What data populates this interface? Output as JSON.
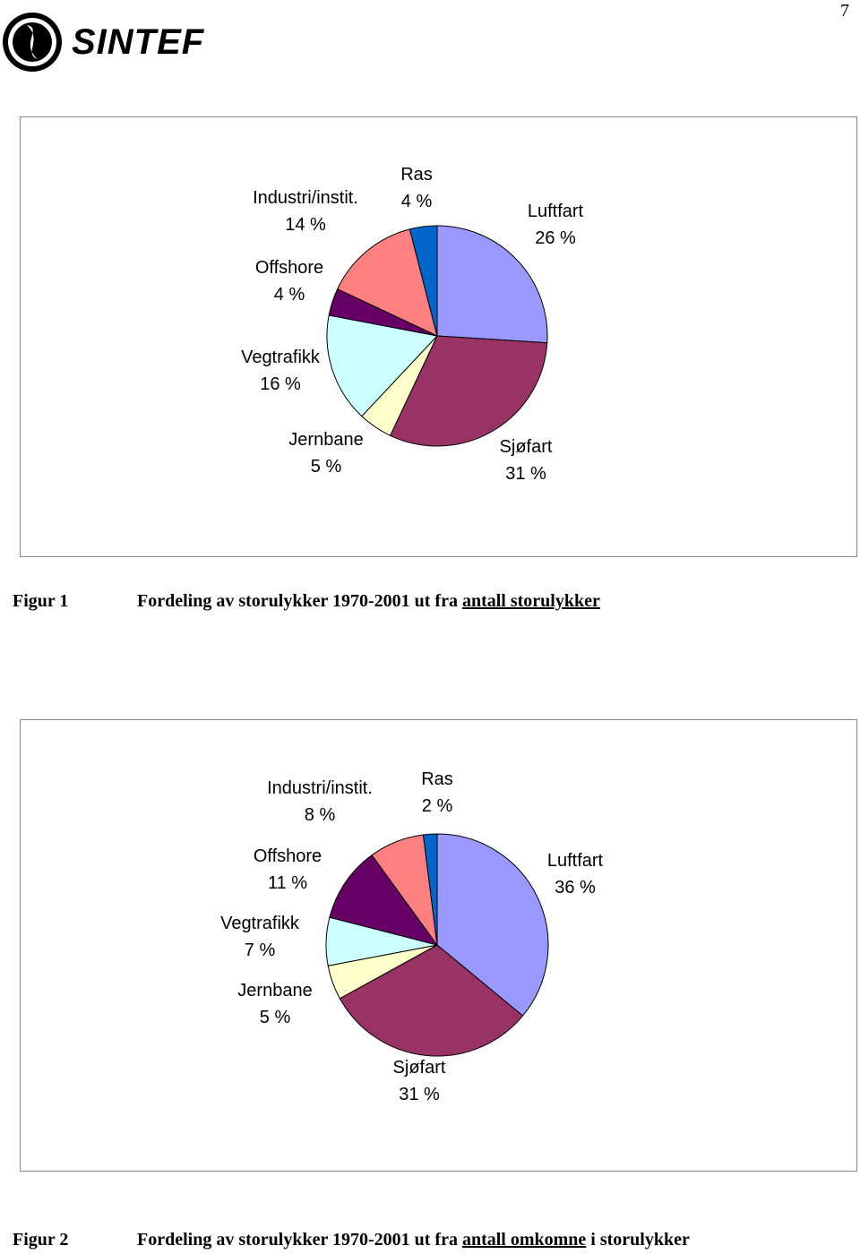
{
  "page_number": "7",
  "logo": "SINTEF",
  "chart_data": [
    {
      "type": "pie",
      "categories": [
        "Luftfart",
        "Sjøfart",
        "Jernbane",
        "Vegtrafikk",
        "Offshore",
        "Industri/instit.",
        "Ras"
      ],
      "values": [
        26,
        31,
        5,
        16,
        4,
        14,
        4
      ],
      "value_labels": [
        "26 %",
        "31 %",
        "5 %",
        "16 %",
        "4 %",
        "14 %",
        "4 %"
      ],
      "colors": [
        "#9999ff",
        "#993366",
        "#ffffcc",
        "#ccffff",
        "#660066",
        "#ff8080",
        "#0066cc"
      ]
    },
    {
      "type": "pie",
      "categories": [
        "Luftfart",
        "Sjøfart",
        "Jernbane",
        "Vegtrafikk",
        "Offshore",
        "Industri/instit.",
        "Ras"
      ],
      "values": [
        36,
        31,
        5,
        7,
        11,
        8,
        2
      ],
      "value_labels": [
        "36 %",
        "31 %",
        "5 %",
        "7 %",
        "11 %",
        "8 %",
        "2 %"
      ],
      "colors": [
        "#9999ff",
        "#993366",
        "#ffffcc",
        "#ccffff",
        "#660066",
        "#ff8080",
        "#0066cc"
      ]
    }
  ],
  "captions": [
    {
      "label": "Figur 1",
      "parts": [
        {
          "text": "Fordeling av storulykker 1970-2001 ut fra "
        },
        {
          "text": "antall storulykker",
          "underline": true
        }
      ]
    },
    {
      "label": "Figur 2",
      "parts": [
        {
          "text": "Fordeling av storulykker 1970-2001 ut fra "
        },
        {
          "text": "antall omkomne",
          "underline": true
        },
        {
          "text": " i storulykker"
        }
      ]
    }
  ]
}
